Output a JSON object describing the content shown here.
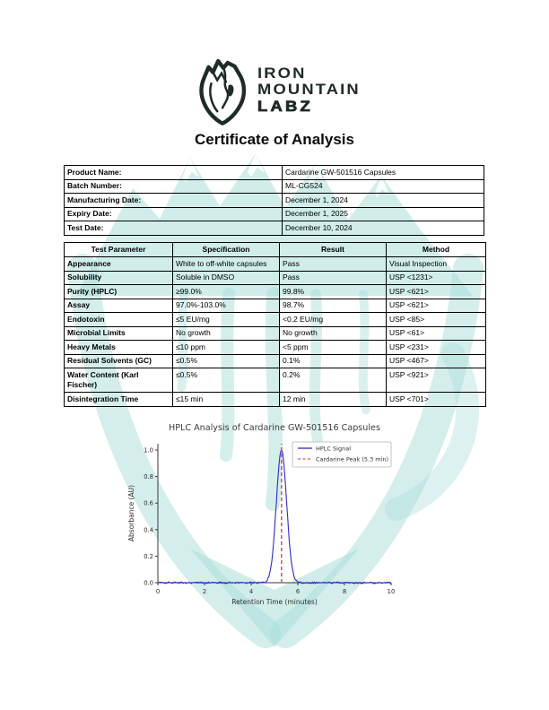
{
  "page": {
    "watermark_color": "#a9ded9",
    "logo_color": "#1e2b28"
  },
  "header": {
    "brand_line1": "IRON",
    "brand_line2": "MOUNTAIN",
    "brand_line3": "LABZ",
    "title": "Certificate of Analysis"
  },
  "product_info": {
    "rows": [
      {
        "label": "Product Name:",
        "value": "Cardarine GW-501516 Capsules"
      },
      {
        "label": "Batch Number:",
        "value": "ML-CG524"
      },
      {
        "label": "Manufacturing Date:",
        "value": "December 1, 2024"
      },
      {
        "label": "Expiry Date:",
        "value": "December 1, 2025"
      },
      {
        "label": "Test Date:",
        "value": "December 10, 2024"
      }
    ]
  },
  "test_table": {
    "headers": [
      "Test Parameter",
      "Specification",
      "Result",
      "Method"
    ],
    "rows": [
      [
        "Appearance",
        "White to off-white capsules",
        "Pass",
        "Visual Inspection"
      ],
      [
        "Solubility",
        "Soluble in DMSO",
        "Pass",
        "USP <1231>"
      ],
      [
        "Purity (HPLC)",
        "≥99.0%",
        "99.8%",
        "USP <621>"
      ],
      [
        "Assay",
        "97.0%-103.0%",
        "98.7%",
        "USP <621>"
      ],
      [
        "Endotoxin",
        "≤5 EU/mg",
        "<0.2 EU/mg",
        "USP <85>"
      ],
      [
        "Microbial Limits",
        "No growth",
        "No growth",
        "USP <61>"
      ],
      [
        "Heavy Metals",
        "≤10 ppm",
        "<5 ppm",
        "USP <231>"
      ],
      [
        "Residual Solvents (GC)",
        "≤0.5%",
        "0.1%",
        "USP <467>"
      ],
      [
        "Water Content (Karl Fischer)",
        "≤0.5%",
        "0.2%",
        "USP <921>"
      ],
      [
        "Disintegration Time",
        "≤15 min",
        "12 min",
        "USP <701>"
      ]
    ]
  },
  "chart_data": {
    "type": "line",
    "title": "HPLC Analysis of Cardarine GW-501516 Capsules",
    "xlabel": "Retention Time (minutes)",
    "ylabel": "Absorbance (AU)",
    "xlim": [
      0,
      10
    ],
    "ylim": [
      0,
      1.05
    ],
    "xticks": [
      "0",
      "2",
      "4",
      "6",
      "8",
      "10"
    ],
    "yticks": [
      "0.0",
      "0.2",
      "0.4",
      "0.6",
      "0.8",
      "1.0"
    ],
    "grid": false,
    "legend_position": "upper right",
    "series": [
      {
        "name": "HPLC Signal",
        "type": "gaussian_peak",
        "color": "#2b2bd0",
        "line_style": "solid",
        "peak_center": 5.3,
        "peak_sigma": 0.22,
        "peak_amplitude": 1.0,
        "baseline": 0.0,
        "noise_amplitude": 0.006
      },
      {
        "name": "Cardarine Peak (5.3 min)",
        "type": "vline",
        "color": "#e05a55",
        "line_style": "dashed",
        "x": 5.3
      }
    ]
  }
}
